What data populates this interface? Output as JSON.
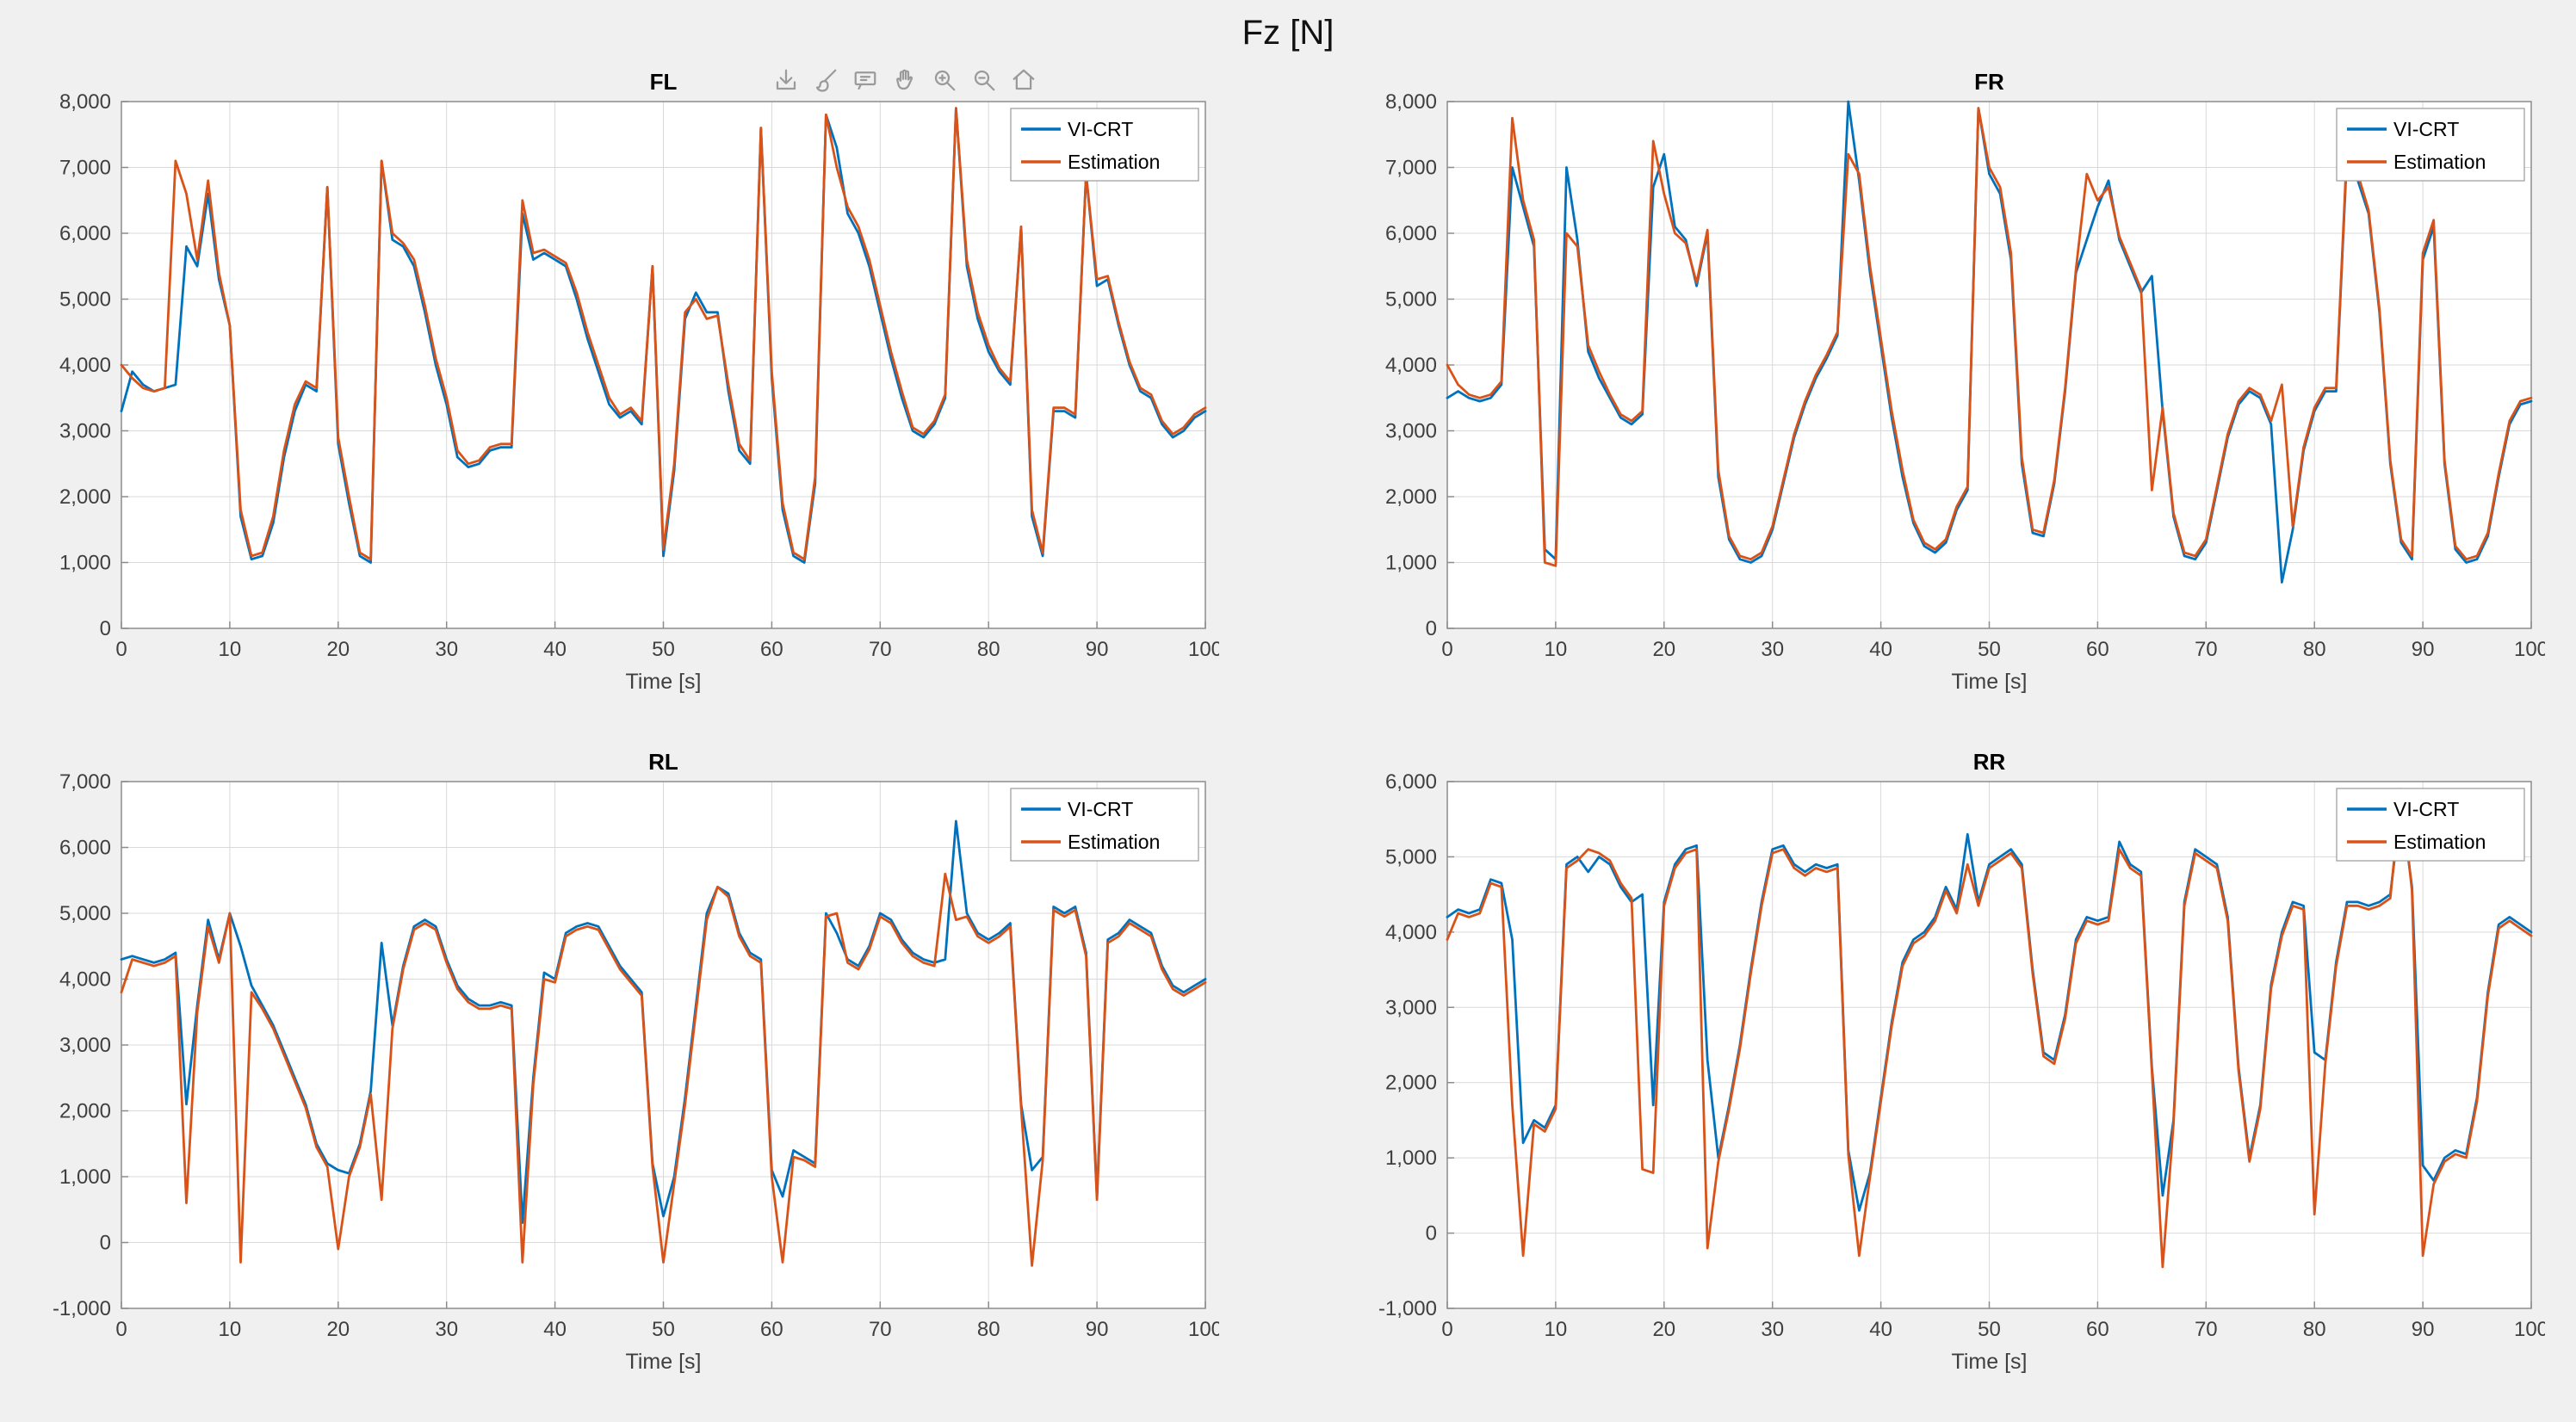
{
  "figure_title": "Fz [N]",
  "axes_toolbar": {
    "icons": [
      "export-icon",
      "brush-icon",
      "datatips-icon",
      "pan-icon",
      "zoom-in-icon",
      "zoom-out-icon",
      "restore-view-icon"
    ]
  },
  "colors": {
    "vi_crt": "#0072BD",
    "estimation": "#D95319",
    "grid": "#d9d9d9",
    "axis": "#8c8c8c",
    "tick_text": "#3f3f3f",
    "title_text": "#000000",
    "background": "#f0f0f0",
    "plot_background": "#ffffff",
    "legend_border": "#a0a0a0"
  },
  "chart_data": [
    {
      "type": "line",
      "title": "FL",
      "xlabel": "Time [s]",
      "ylabel": "",
      "xlim": [
        0,
        100
      ],
      "ylim": [
        0,
        8000
      ],
      "xticks": [
        0,
        10,
        20,
        30,
        40,
        50,
        60,
        70,
        80,
        90,
        100
      ],
      "yticks": [
        0,
        1000,
        2000,
        3000,
        4000,
        5000,
        6000,
        7000,
        8000
      ],
      "grid": true,
      "legend_position": "top-right",
      "x_sample_step": 1,
      "series": [
        {
          "name": "VI-CRT",
          "color": "#0072BD",
          "values": [
            3300,
            3900,
            3700,
            3600,
            3650,
            3700,
            5800,
            5500,
            6600,
            5300,
            4600,
            1700,
            1050,
            1100,
            1600,
            2600,
            3300,
            3700,
            3600,
            6700,
            2800,
            1900,
            1100,
            1000,
            7100,
            5900,
            5800,
            5500,
            4800,
            4000,
            3400,
            2600,
            2450,
            2500,
            2700,
            2750,
            2750,
            6300,
            5600,
            5700,
            5600,
            5500,
            5000,
            4400,
            3900,
            3400,
            3200,
            3300,
            3100,
            5500,
            1100,
            2400,
            4700,
            5100,
            4800,
            4800,
            3600,
            2700,
            2500,
            7600,
            3800,
            1800,
            1100,
            1000,
            2200,
            7800,
            7300,
            6300,
            6000,
            5500,
            4800,
            4100,
            3500,
            3000,
            2900,
            3100,
            3500,
            7900,
            5500,
            4700,
            4200,
            3900,
            3700,
            6100,
            1700,
            1100,
            3300,
            3300,
            3200,
            6900,
            5200,
            5300,
            4600,
            4000,
            3600,
            3500,
            3100,
            2900,
            3000,
            3200,
            3300
          ]
        },
        {
          "name": "Estimation",
          "color": "#D95319",
          "values": [
            4000,
            3800,
            3650,
            3600,
            3650,
            7100,
            6600,
            5600,
            6800,
            5400,
            4600,
            1800,
            1100,
            1150,
            1700,
            2700,
            3400,
            3750,
            3650,
            6700,
            2900,
            2000,
            1150,
            1050,
            7100,
            6000,
            5850,
            5600,
            4900,
            4100,
            3500,
            2700,
            2500,
            2550,
            2750,
            2800,
            2800,
            6500,
            5700,
            5750,
            5650,
            5550,
            5100,
            4500,
            4000,
            3500,
            3250,
            3350,
            3150,
            5500,
            1200,
            2500,
            4800,
            5000,
            4700,
            4750,
            3700,
            2800,
            2550,
            7600,
            3900,
            1900,
            1150,
            1050,
            2300,
            7800,
            7000,
            6400,
            6100,
            5600,
            4900,
            4200,
            3600,
            3050,
            2950,
            3150,
            3550,
            7900,
            5600,
            4800,
            4300,
            3950,
            3750,
            6100,
            1800,
            1150,
            3350,
            3350,
            3250,
            6900,
            5300,
            5350,
            4650,
            4050,
            3650,
            3550,
            3150,
            2950,
            3050,
            3250,
            3350
          ]
        }
      ]
    },
    {
      "type": "line",
      "title": "FR",
      "xlabel": "Time [s]",
      "ylabel": "",
      "xlim": [
        0,
        100
      ],
      "ylim": [
        0,
        8000
      ],
      "xticks": [
        0,
        10,
        20,
        30,
        40,
        50,
        60,
        70,
        80,
        90,
        100
      ],
      "yticks": [
        0,
        1000,
        2000,
        3000,
        4000,
        5000,
        6000,
        7000,
        8000
      ],
      "grid": true,
      "legend_position": "top-right",
      "x_sample_step": 1,
      "series": [
        {
          "name": "VI-CRT",
          "color": "#0072BD",
          "values": [
            3500,
            3600,
            3500,
            3450,
            3500,
            3700,
            7000,
            6400,
            5800,
            1200,
            1050,
            7000,
            5900,
            4200,
            3800,
            3500,
            3200,
            3100,
            3250,
            6700,
            7200,
            6100,
            5900,
            5200,
            6000,
            2300,
            1350,
            1050,
            1000,
            1100,
            1500,
            2200,
            2900,
            3400,
            3800,
            4100,
            4450,
            8000,
            6800,
            5400,
            4300,
            3200,
            2300,
            1600,
            1250,
            1150,
            1300,
            1800,
            2100,
            7900,
            6900,
            6600,
            5600,
            2500,
            1450,
            1400,
            2200,
            3600,
            5400,
            5900,
            6400,
            6800,
            5900,
            5500,
            5100,
            5350,
            3300,
            1700,
            1100,
            1050,
            1300,
            2100,
            2900,
            3400,
            3600,
            3500,
            3100,
            700,
            1500,
            2700,
            3300,
            3600,
            3600,
            7200,
            6800,
            6300,
            4800,
            2500,
            1300,
            1050,
            5600,
            6100,
            2500,
            1200,
            1000,
            1050,
            1400,
            2300,
            3100,
            3400,
            3450
          ]
        },
        {
          "name": "Estimation",
          "color": "#D95319",
          "values": [
            4000,
            3700,
            3550,
            3500,
            3550,
            3750,
            7750,
            6500,
            5900,
            1000,
            950,
            6000,
            5800,
            4300,
            3900,
            3550,
            3250,
            3150,
            3300,
            7400,
            6600,
            6000,
            5850,
            5250,
            6050,
            2400,
            1400,
            1100,
            1050,
            1150,
            1550,
            2250,
            2950,
            3450,
            3850,
            4150,
            4500,
            7200,
            6900,
            5500,
            4400,
            3300,
            2400,
            1650,
            1300,
            1200,
            1350,
            1850,
            2150,
            7900,
            7000,
            6700,
            5700,
            2600,
            1500,
            1450,
            2250,
            3650,
            5450,
            6900,
            6500,
            6700,
            5950,
            5550,
            5150,
            2100,
            3350,
            1750,
            1150,
            1100,
            1350,
            2150,
            2950,
            3450,
            3650,
            3550,
            3150,
            3700,
            1550,
            2750,
            3350,
            3650,
            3650,
            7300,
            6900,
            6350,
            4850,
            2550,
            1350,
            1100,
            5700,
            6200,
            2550,
            1250,
            1050,
            1100,
            1450,
            2350,
            3150,
            3450,
            3500
          ]
        }
      ]
    },
    {
      "type": "line",
      "title": "RL",
      "xlabel": "Time [s]",
      "ylabel": "",
      "xlim": [
        0,
        100
      ],
      "ylim": [
        -1000,
        7000
      ],
      "xticks": [
        0,
        10,
        20,
        30,
        40,
        50,
        60,
        70,
        80,
        90,
        100
      ],
      "yticks": [
        -1000,
        0,
        1000,
        2000,
        3000,
        4000,
        5000,
        6000,
        7000
      ],
      "grid": true,
      "legend_position": "top-right",
      "x_sample_step": 1,
      "series": [
        {
          "name": "VI-CRT",
          "color": "#0072BD",
          "values": [
            4300,
            4350,
            4300,
            4250,
            4300,
            4400,
            2100,
            3600,
            4900,
            4300,
            5000,
            4500,
            3900,
            3600,
            3300,
            2900,
            2500,
            2100,
            1500,
            1200,
            1100,
            1050,
            1500,
            2300,
            4550,
            3300,
            4200,
            4800,
            4900,
            4800,
            4300,
            3900,
            3700,
            3600,
            3600,
            3650,
            3600,
            300,
            2500,
            4100,
            4000,
            4700,
            4800,
            4850,
            4800,
            4500,
            4200,
            4000,
            3800,
            1200,
            400,
            1000,
            2200,
            3600,
            5000,
            5400,
            5300,
            4700,
            4400,
            4300,
            1100,
            700,
            1400,
            1300,
            1200,
            5000,
            4700,
            4300,
            4200,
            4500,
            5000,
            4900,
            4600,
            4400,
            4300,
            4250,
            4300,
            6400,
            5000,
            4700,
            4600,
            4700,
            4850,
            2100,
            1100,
            1300,
            5100,
            5000,
            5100,
            4400,
            700,
            4600,
            4700,
            4900,
            4800,
            4700,
            4200,
            3900,
            3800,
            3900,
            4000
          ]
        },
        {
          "name": "Estimation",
          "color": "#D95319",
          "values": [
            3800,
            4300,
            4250,
            4200,
            4250,
            4350,
            600,
            3500,
            4800,
            4250,
            5000,
            -300,
            3800,
            3550,
            3250,
            2850,
            2450,
            2050,
            1450,
            1150,
            -100,
            1000,
            1450,
            2250,
            650,
            3250,
            4150,
            4750,
            4850,
            4750,
            4250,
            3850,
            3650,
            3550,
            3550,
            3600,
            3550,
            -300,
            2400,
            4000,
            3950,
            4650,
            4750,
            4800,
            4750,
            4450,
            4150,
            3950,
            3750,
            1150,
            -300,
            900,
            2100,
            3500,
            4900,
            5400,
            5250,
            4650,
            4350,
            4250,
            1000,
            -300,
            1300,
            1250,
            1150,
            4950,
            5000,
            4250,
            4150,
            4450,
            4950,
            4850,
            4550,
            4350,
            4250,
            4200,
            5600,
            4900,
            4950,
            4650,
            4550,
            4650,
            4800,
            2050,
            -350,
            1250,
            5050,
            4950,
            5050,
            4350,
            650,
            4550,
            4650,
            4850,
            4750,
            4650,
            4150,
            3850,
            3750,
            3850,
            3950
          ]
        }
      ]
    },
    {
      "type": "line",
      "title": "RR",
      "xlabel": "Time [s]",
      "ylabel": "",
      "xlim": [
        0,
        100
      ],
      "ylim": [
        -1000,
        6000
      ],
      "xticks": [
        0,
        10,
        20,
        30,
        40,
        50,
        60,
        70,
        80,
        90,
        100
      ],
      "yticks": [
        -1000,
        0,
        1000,
        2000,
        3000,
        4000,
        5000,
        6000
      ],
      "grid": true,
      "legend_position": "top-right",
      "x_sample_step": 1,
      "series": [
        {
          "name": "VI-CRT",
          "color": "#0072BD",
          "values": [
            4200,
            4300,
            4250,
            4300,
            4700,
            4650,
            3900,
            1200,
            1500,
            1400,
            1700,
            4900,
            5000,
            4800,
            5000,
            4900,
            4600,
            4400,
            4500,
            1700,
            4400,
            4900,
            5100,
            5150,
            2300,
            1000,
            1700,
            2500,
            3500,
            4400,
            5100,
            5150,
            4900,
            4800,
            4900,
            4850,
            4900,
            1100,
            300,
            800,
            1800,
            2800,
            3600,
            3900,
            4000,
            4200,
            4600,
            4300,
            5300,
            4400,
            4900,
            5000,
            5100,
            4900,
            3500,
            2400,
            2300,
            2900,
            3900,
            4200,
            4150,
            4200,
            5200,
            4900,
            4800,
            2200,
            500,
            1500,
            4400,
            5100,
            5000,
            4900,
            4200,
            2200,
            1000,
            1700,
            3300,
            4000,
            4400,
            4350,
            2400,
            2300,
            3600,
            4400,
            4400,
            4350,
            4400,
            4500,
            5700,
            4600,
            900,
            700,
            1000,
            1100,
            1050,
            1800,
            3200,
            4100,
            4200,
            4100,
            4000
          ]
        },
        {
          "name": "Estimation",
          "color": "#D95319",
          "values": [
            3900,
            4250,
            4200,
            4250,
            4650,
            4600,
            1700,
            -300,
            1450,
            1350,
            1650,
            4850,
            4950,
            5100,
            5050,
            4950,
            4650,
            4450,
            850,
            800,
            4350,
            4850,
            5050,
            5100,
            -200,
            950,
            1650,
            2450,
            3450,
            4350,
            5050,
            5100,
            4850,
            4750,
            4850,
            4800,
            4850,
            1050,
            -300,
            750,
            1750,
            2750,
            3550,
            3850,
            3950,
            4150,
            4550,
            4250,
            4900,
            4350,
            4850,
            4950,
            5050,
            4850,
            3450,
            2350,
            2250,
            2850,
            3850,
            4150,
            4100,
            4150,
            5100,
            4850,
            4750,
            2150,
            -450,
            1450,
            4350,
            5050,
            4950,
            4850,
            4150,
            2150,
            950,
            1650,
            3250,
            3950,
            4350,
            4300,
            250,
            2250,
            3550,
            4350,
            4350,
            4300,
            4350,
            4450,
            5900,
            4550,
            -300,
            650,
            950,
            1050,
            1000,
            1750,
            3150,
            4050,
            4150,
            4050,
            3950
          ]
        }
      ]
    }
  ]
}
